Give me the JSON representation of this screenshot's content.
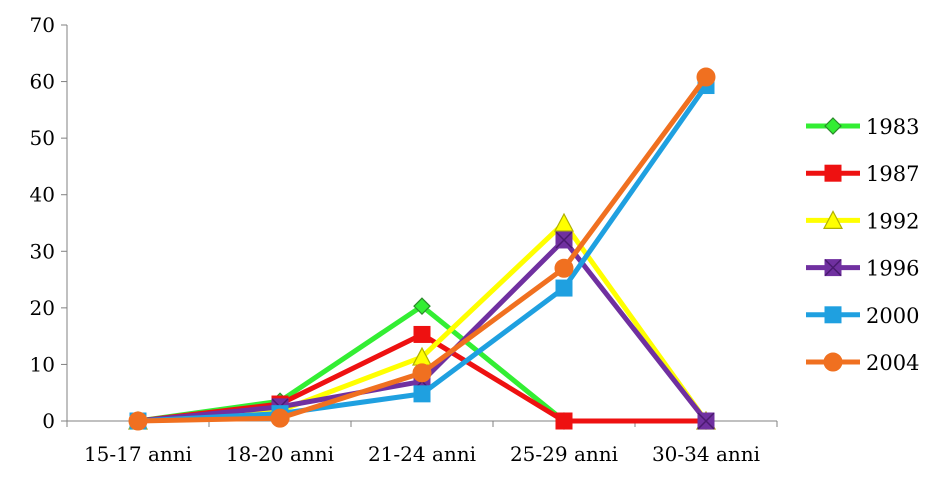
{
  "chart_data": {
    "type": "line",
    "categories": [
      "15-17 anni",
      "18-20 anni",
      "21-24 anni",
      "25-29 anni",
      "30-34 anni"
    ],
    "ylim": [
      0,
      70
    ],
    "yticks": [
      0,
      10,
      20,
      30,
      40,
      50,
      60,
      70
    ],
    "grid": false,
    "legend": "right",
    "series": [
      {
        "name": "1983",
        "color": "#33ee33",
        "marker": "diamond",
        "values": [
          0,
          3.5,
          20.3,
          0,
          0
        ]
      },
      {
        "name": "1987",
        "color": "#ee1111",
        "marker": "square",
        "values": [
          0,
          3.0,
          15.3,
          0,
          0
        ]
      },
      {
        "name": "1992",
        "color": "#ffff00",
        "marker": "triangle",
        "values": [
          0,
          1.8,
          11.3,
          35.0,
          0
        ]
      },
      {
        "name": "1996",
        "color": "#7030a0",
        "marker": "xsquare",
        "values": [
          0,
          2.5,
          7.0,
          32.0,
          0
        ]
      },
      {
        "name": "2000",
        "color": "#1fa0e0",
        "marker": "square",
        "values": [
          0,
          1.3,
          4.8,
          23.5,
          59.3
        ]
      },
      {
        "name": "2004",
        "color": "#f07020",
        "marker": "circle",
        "values": [
          0,
          0.5,
          8.5,
          27.0,
          60.8
        ]
      }
    ]
  }
}
